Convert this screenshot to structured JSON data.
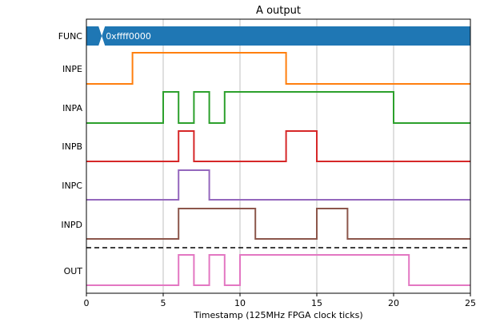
{
  "chart_data": {
    "type": "line",
    "title": "A output",
    "xlabel": "Timestamp (125MHz FPGA clock ticks)",
    "xlim": [
      0,
      25
    ],
    "xticks": [
      0,
      5,
      10,
      15,
      20,
      25
    ],
    "grid": "vertical",
    "bus": {
      "name": "FUNC",
      "value_label": "0xffff0000",
      "transition_x": 1,
      "color": "#1f77b4"
    },
    "series": [
      {
        "name": "INPE",
        "color": "#ff7f0e",
        "initial": 0,
        "edges": [
          3,
          13
        ]
      },
      {
        "name": "INPA",
        "color": "#2ca02c",
        "initial": 0,
        "edges": [
          5,
          6,
          7,
          8,
          9,
          20
        ]
      },
      {
        "name": "INPB",
        "color": "#d62728",
        "initial": 0,
        "edges": [
          6,
          7,
          13,
          15
        ]
      },
      {
        "name": "INPC",
        "color": "#9467bd",
        "initial": 0,
        "edges": [
          6,
          8
        ]
      },
      {
        "name": "INPD",
        "color": "#8c564b",
        "initial": 0,
        "edges": [
          6,
          11,
          15,
          17
        ]
      },
      {
        "name": "OUT",
        "color": "#e377c2",
        "initial": 0,
        "edges": [
          6,
          7,
          8,
          9,
          10,
          21
        ]
      }
    ],
    "separator_after": "INPD"
  }
}
